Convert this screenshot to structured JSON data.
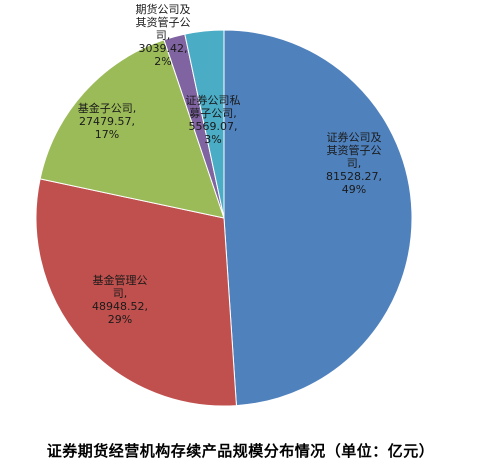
{
  "chart_data": {
    "type": "pie",
    "title": "证券期货经营机构存续产品规模分布情况（单位：亿元）",
    "slices": [
      {
        "name": "证券公司及其资管子公司",
        "label_lines": [
          "证券公司及",
          "其资管子公",
          "司,",
          "81528.27,",
          "49%"
        ],
        "value": 81528.27,
        "percent": "49%",
        "color": "#4f81bd"
      },
      {
        "name": "基金管理公司",
        "label_lines": [
          "基金管理公",
          "司,",
          "48948.52,",
          "29%"
        ],
        "value": 48948.52,
        "percent": "29%",
        "color": "#c0504d"
      },
      {
        "name": "基金子公司",
        "label_lines": [
          "基金子公司,",
          "27479.57,",
          "17%"
        ],
        "value": 27479.57,
        "percent": "17%",
        "color": "#9bbb59"
      },
      {
        "name": "期货公司及其资管子公司",
        "label_lines": [
          "期货公司及",
          "其资管子公",
          "司,",
          "3039.42,",
          "2%"
        ],
        "value": 3039.42,
        "percent": "2%",
        "color": "#8064a2"
      },
      {
        "name": "证券公司私募子公司",
        "label_lines": [
          "证券公司私",
          "募子公司,",
          "5569.07,",
          "3%"
        ],
        "value": 5569.07,
        "percent": "3%",
        "color": "#4bacc6"
      }
    ]
  }
}
